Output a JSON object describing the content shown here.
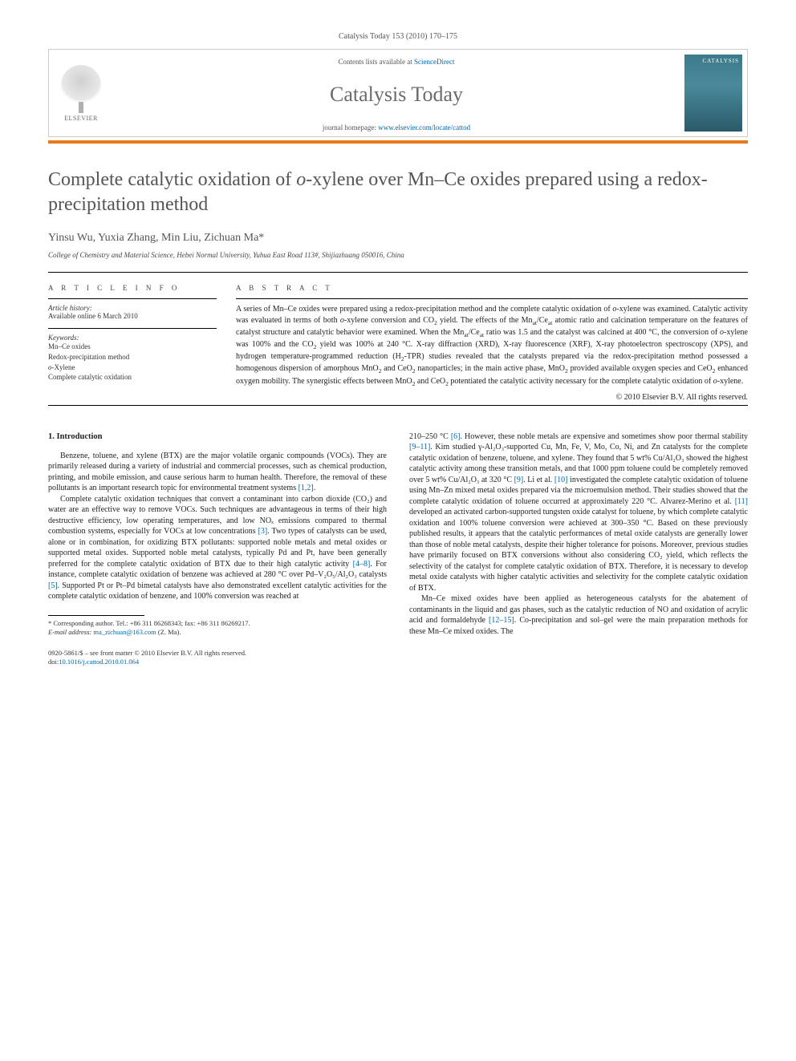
{
  "journal_ref": "Catalysis Today 153 (2010) 170–175",
  "header": {
    "contents_prefix": "Contents lists available at ",
    "contents_link": "ScienceDirect",
    "journal_name": "Catalysis Today",
    "homepage_prefix": "journal homepage: ",
    "homepage_url": "www.elsevier.com/locate/cattod",
    "elsevier": "ELSEVIER",
    "cover_label": "CATALYSIS"
  },
  "title": "Complete catalytic oxidation of o-xylene over Mn–Ce oxides prepared using a redox-precipitation method",
  "authors": "Yinsu Wu, Yuxia Zhang, Min Liu, Zichuan Ma*",
  "affiliation": "College of Chemistry and Material Science, Hebei Normal University, Yuhua East Road 113#, Shijiazhuang 050016, China",
  "article_info": {
    "heading": "A R T I C L E   I N F O",
    "history_label": "Article history:",
    "history_text": "Available online 6 March 2010",
    "keywords_label": "Keywords:",
    "keywords": [
      "Mn–Ce oxides",
      "Redox-precipitation method",
      "o-Xylene",
      "Complete catalytic oxidation"
    ]
  },
  "abstract": {
    "heading": "A B S T R A C T",
    "text": "A series of Mn–Ce oxides were prepared using a redox-precipitation method and the complete catalytic oxidation of o-xylene was examined. Catalytic activity was evaluated in terms of both o-xylene conversion and CO₂ yield. The effects of the Mnₐₜ/Ceₐₜ atomic ratio and calcination temperature on the features of catalyst structure and catalytic behavior were examined. When the Mnₐₜ/Ceₐₜ ratio was 1.5 and the catalyst was calcined at 400 °C, the conversion of o-xylene was 100% and the CO₂ yield was 100% at 240 °C. X-ray diffraction (XRD), X-ray fluorescence (XRF), X-ray photoelectron spectroscopy (XPS), and hydrogen temperature-programmed reduction (H₂-TPR) studies revealed that the catalysts prepared via the redox-precipitation method possessed a homogenous dispersion of amorphous MnO₂ and CeO₂ nanoparticles; in the main active phase, MnO₂ provided available oxygen species and CeO₂ enhanced oxygen mobility. The synergistic effects between MnO₂ and CeO₂ potentiated the catalytic activity necessary for the complete catalytic oxidation of o-xylene.",
    "copyright": "© 2010 Elsevier B.V. All rights reserved."
  },
  "section1": {
    "heading": "1.  Introduction",
    "p1": "Benzene, toluene, and xylene (BTX) are the major volatile organic compounds (VOCs). They are primarily released during a variety of industrial and commercial processes, such as chemical production, printing, and mobile emission, and cause serious harm to human health. Therefore, the removal of these pollutants is an important research topic for environmental treatment systems ",
    "p1_ref": "[1,2]",
    "p1_end": ".",
    "p2a": "Complete catalytic oxidation techniques that convert a contaminant into carbon dioxide (CO₂) and water are an effective way to remove VOCs. Such techniques are advantageous in terms of their high destructive efficiency, low operating temperatures, and low NOₓ emissions compared to thermal combustion systems, especially for VOCs at low concentrations ",
    "p2_ref1": "[3]",
    "p2b": ". Two types of catalysts can be used, alone or in combination, for oxidizing BTX pollutants: supported noble metals and metal oxides or supported metal oxides. Supported noble metal catalysts, typically Pd and Pt, have been generally preferred for the complete catalytic oxidation of BTX due to their high catalytic activity ",
    "p2_ref2": "[4–8]",
    "p2c": ". For instance, complete catalytic oxidation of benzene was achieved at 280 °C over Pd–V₂O₅/Al₂O₃ catalysts ",
    "p2_ref3": "[5]",
    "p2d": ". Supported Pt or Pt–Pd bimetal catalysts have also demonstrated excellent catalytic activities for the complete catalytic oxidation of benzene, and 100% conversion was reached at"
  },
  "col2": {
    "p1a": "210–250 °C ",
    "ref1": "[6]",
    "p1b": ". However, these noble metals are expensive and sometimes show poor thermal stability ",
    "ref2": "[9–11]",
    "p1c": ". Kim studied γ-Al₂O₃-supported Cu, Mn, Fe, V, Mo, Co, Ni, and Zn catalysts for the complete catalytic oxidation of benzene, toluene, and xylene. They found that 5 wt% Cu/Al₂O₃ showed the highest catalytic activity among these transition metals, and that 1000 ppm toluene could be completely removed over 5 wt% Cu/Al₂O₃ at 320 °C ",
    "ref3": "[9]",
    "p1d": ". Li et al. ",
    "ref4": "[10]",
    "p1e": " investigated the complete catalytic oxidation of toluene using Mn–Zn mixed metal oxides prepared via the microemulsion method. Their studies showed that the complete catalytic oxidation of toluene occurred at approximately 220 °C. Alvarez-Merino et al. ",
    "ref5": "[11]",
    "p1f": " developed an activated carbon-supported tungsten oxide catalyst for toluene, by which complete catalytic oxidation and 100% toluene conversion were achieved at 300–350 °C. Based on these previously published results, it appears that the catalytic performances of metal oxide catalysts are generally lower than those of noble metal catalysts, despite their higher tolerance for poisons. Moreover, previous studies have primarily focused on BTX conversions without also considering CO₂ yield, which reflects the selectivity of the catalyst for complete catalytic oxidation of BTX. Therefore, it is necessary to develop metal oxide catalysts with higher catalytic activities and selectivity for the complete catalytic oxidation of BTX.",
    "p2a": "Mn–Ce mixed oxides have been applied as heterogeneous catalysts for the abatement of contaminants in the liquid and gas phases, such as the catalytic reduction of NO and oxidation of acrylic acid and formaldehyde ",
    "ref6": "[12–15]",
    "p2b": ". Co-precipitation and sol–gel were the main preparation methods for these Mn–Ce mixed oxides. The"
  },
  "footnote": {
    "corr": "* Corresponding author. Tel.: +86 311 86268343; fax: +86 311 86269217.",
    "email_label": "E-mail address: ",
    "email": "ma_zichuan@163.com",
    "email_suffix": " (Z. Ma)."
  },
  "bottom": {
    "issn": "0920-5861/$ – see front matter © 2010 Elsevier B.V. All rights reserved.",
    "doi_label": "doi:",
    "doi": "10.1016/j.cattod.2010.01.064"
  },
  "colors": {
    "orange": "#e8671a",
    "link": "#0066aa",
    "title_grey": "#555555"
  }
}
